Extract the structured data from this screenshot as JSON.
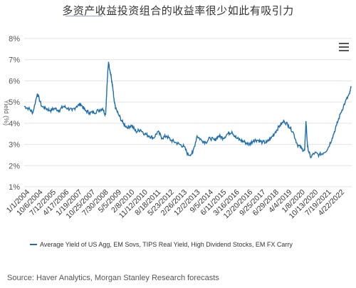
{
  "title": "多资产收益投资组合的收益率很少如此有吸引力",
  "source": "Source: Haver Analytics, Morgan Stanley Research forecasts",
  "colors": {
    "line": "#1f6fad",
    "grid": "#e3e3e3",
    "text": "#333333"
  },
  "menu_icon": "hamburger-menu-icon",
  "chart_data": {
    "type": "line",
    "title": "多资产收益投资组合的收益率很少如此有吸引力",
    "xlabel": "",
    "ylabel": "Yield (%)",
    "ylim": [
      1,
      8
    ],
    "y_ticks": [
      "1%",
      "2%",
      "3%",
      "4%",
      "5%",
      "6%",
      "7%",
      "8%"
    ],
    "x_ticks": [
      "1/1/2004",
      "10/6/2004",
      "7/12/2005",
      "4/17/2006",
      "1/19/2007",
      "10/25/2007",
      "7/30/2008",
      "5/5/2009",
      "2/8/2010",
      "11/12/2010",
      "8/18/2011",
      "5/23/2012",
      "2/26/2013",
      "12/2/2013",
      "9/5/2014",
      "6/11/2015",
      "3/16/2016",
      "12/20/2016",
      "9/25/2017",
      "6/29/2018",
      "4/4/2019",
      "1/8/2020",
      "10/13/2020",
      "7/19/2021",
      "4/22/2022"
    ],
    "grid": true,
    "legend_position": "bottom",
    "series": [
      {
        "name": "Average Yield of US Agg, EM Sovs, TIPS Real Yield, High Dividend Stocks, EM FX Carry",
        "x": [
          "2004-01-01",
          "2004-04-01",
          "2004-07-01",
          "2004-10-01",
          "2005-01-01",
          "2005-04-01",
          "2005-07-01",
          "2005-10-01",
          "2006-01-01",
          "2006-04-01",
          "2006-07-01",
          "2006-10-01",
          "2007-01-01",
          "2007-04-01",
          "2007-07-01",
          "2007-10-01",
          "2008-01-01",
          "2008-04-01",
          "2008-07-01",
          "2008-09-01",
          "2008-10-01",
          "2008-11-01",
          "2008-12-01",
          "2009-01-01",
          "2009-02-01",
          "2009-03-01",
          "2009-04-01",
          "2009-06-01",
          "2009-09-01",
          "2009-12-01",
          "2010-03-01",
          "2010-06-01",
          "2010-09-01",
          "2010-12-01",
          "2011-03-01",
          "2011-06-01",
          "2011-09-01",
          "2011-12-01",
          "2012-03-01",
          "2012-06-01",
          "2012-09-01",
          "2012-12-01",
          "2013-03-01",
          "2013-06-01",
          "2013-09-01",
          "2013-12-01",
          "2014-03-01",
          "2014-06-01",
          "2014-09-01",
          "2014-12-01",
          "2015-03-01",
          "2015-06-01",
          "2015-09-01",
          "2015-12-01",
          "2016-03-01",
          "2016-06-01",
          "2016-09-01",
          "2016-12-01",
          "2017-03-01",
          "2017-06-01",
          "2017-09-01",
          "2017-12-01",
          "2018-03-01",
          "2018-06-01",
          "2018-09-01",
          "2018-12-01",
          "2019-03-01",
          "2019-06-01",
          "2019-09-01",
          "2019-12-01",
          "2020-02-01",
          "2020-03-01",
          "2020-04-01",
          "2020-06-01",
          "2020-09-01",
          "2020-12-01",
          "2021-03-01",
          "2021-06-01",
          "2021-09-01",
          "2021-12-01",
          "2022-03-01",
          "2022-06-01",
          "2022-09-01",
          "2022-10-01"
        ],
        "values": [
          4.8,
          4.7,
          4.5,
          5.4,
          4.8,
          4.7,
          4.6,
          4.7,
          4.6,
          4.8,
          4.7,
          4.6,
          4.8,
          4.9,
          4.6,
          4.5,
          4.5,
          4.6,
          4.7,
          4.4,
          5.8,
          6.9,
          6.5,
          6.1,
          5.6,
          5.0,
          4.7,
          4.4,
          4.0,
          3.8,
          3.9,
          3.6,
          3.7,
          3.5,
          3.4,
          3.3,
          3.6,
          3.3,
          3.4,
          3.2,
          3.1,
          3.0,
          2.9,
          2.5,
          2.6,
          3.4,
          3.2,
          3.1,
          3.3,
          3.2,
          3.4,
          3.3,
          3.5,
          3.6,
          3.3,
          3.2,
          3.1,
          3.0,
          3.2,
          3.2,
          3.1,
          3.1,
          3.3,
          3.6,
          3.9,
          4.1,
          3.9,
          3.6,
          3.0,
          2.8,
          2.7,
          4.1,
          2.9,
          2.4,
          2.6,
          2.5,
          2.6,
          2.8,
          3.3,
          3.9,
          4.5,
          5.0,
          5.4,
          5.7
        ]
      }
    ]
  }
}
